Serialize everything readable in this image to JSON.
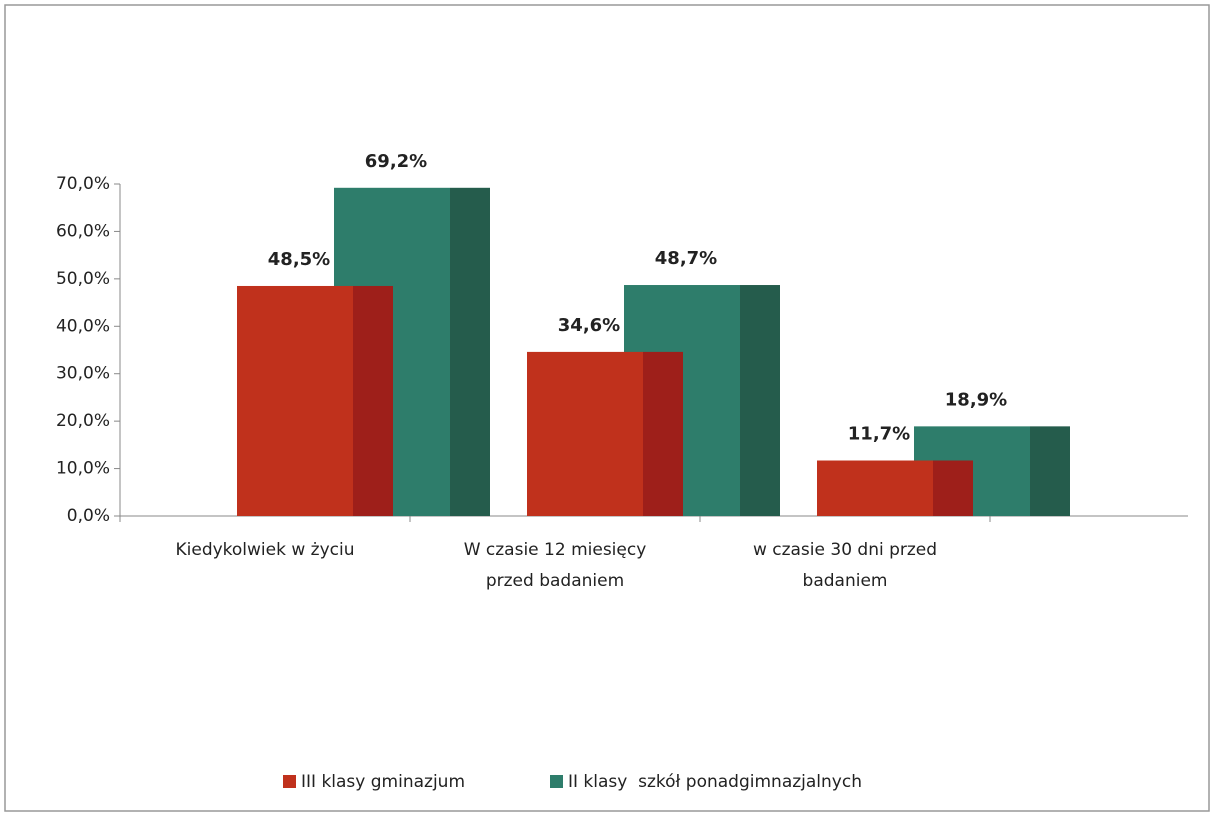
{
  "chart_data": {
    "type": "bar",
    "categories": [
      [
        "Kiedykolwiek w życiu"
      ],
      [
        "W czasie 12 miesięcy",
        "przed badaniem"
      ],
      [
        "w czasie 30 dni przed",
        "badaniem"
      ]
    ],
    "series": [
      {
        "name": "III klasy gminazjum",
        "color": "#c0311c",
        "side_color": "#9e1f1a",
        "values": [
          48.5,
          34.6,
          11.7
        ],
        "value_labels": [
          "48,5%",
          "34,6%",
          "11,7%"
        ]
      },
      {
        "name": "II klasy  szkół ponadgimnazjalnych",
        "color": "#2e7d6b",
        "side_color": "#255c4c",
        "values": [
          69.2,
          48.7,
          18.9
        ],
        "value_labels": [
          "69,2%",
          "48,7%",
          "18,9%"
        ]
      }
    ],
    "ylim": [
      0,
      70
    ],
    "yticks": [
      {
        "value": 0,
        "label": "0,0%"
      },
      {
        "value": 10,
        "label": "10,0%"
      },
      {
        "value": 20,
        "label": "20,0%"
      },
      {
        "value": 30,
        "label": "30,0%"
      },
      {
        "value": 40,
        "label": "40,0%"
      },
      {
        "value": 50,
        "label": "50,0%"
      },
      {
        "value": 60,
        "label": "60,0%"
      },
      {
        "value": 70,
        "label": "70,0%"
      }
    ],
    "legend": "bottom"
  }
}
